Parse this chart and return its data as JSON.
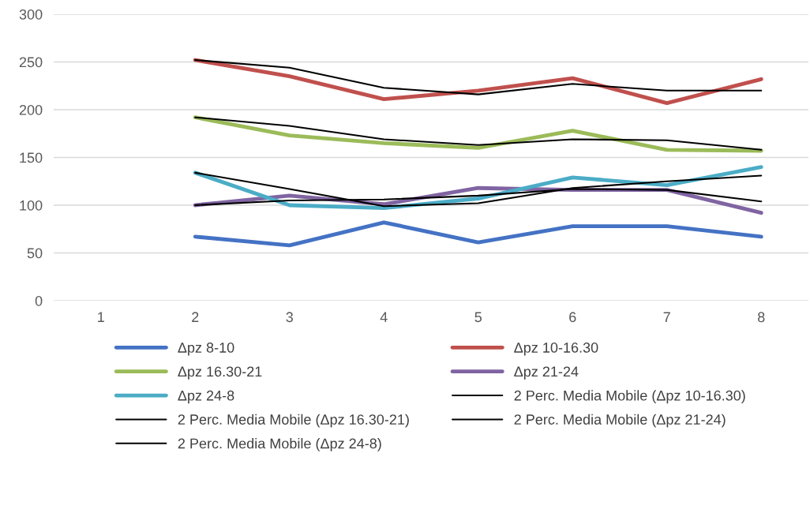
{
  "chart_data": {
    "type": "line",
    "categories": [
      "1",
      "2",
      "3",
      "4",
      "5",
      "6",
      "7",
      "8"
    ],
    "ylim": [
      0,
      300
    ],
    "yticks": [
      0,
      50,
      100,
      150,
      200,
      250,
      300
    ],
    "grid": "y",
    "legend": "bottom",
    "series": [
      {
        "name": "Δpz 8-10",
        "color": "#4472c4",
        "values": [
          null,
          67,
          58,
          82,
          61,
          78,
          78,
          67
        ]
      },
      {
        "name": "Δpz 10-16.30",
        "color": "#c0504d",
        "values": [
          null,
          252,
          235,
          211,
          220,
          233,
          207,
          232
        ]
      },
      {
        "name": "Δpz 16.30-21",
        "color": "#9bbb59",
        "values": [
          null,
          192,
          173,
          165,
          160,
          178,
          158,
          157
        ]
      },
      {
        "name": "Δpz 21-24",
        "color": "#8064a2",
        "values": [
          null,
          100,
          110,
          101,
          118,
          116,
          116,
          92
        ]
      },
      {
        "name": "Δpz 24-8",
        "color": "#4bacc6",
        "values": [
          null,
          134,
          100,
          97,
          107,
          129,
          121,
          140
        ]
      },
      {
        "name": "2 Perc. Media Mobile (Δpz 10-16.30)",
        "color": "#000000",
        "values": [
          null,
          252,
          244,
          223,
          216,
          227,
          220,
          220
        ]
      },
      {
        "name": "2 Perc. Media Mobile (Δpz 16.30-21)",
        "color": "#000000",
        "values": [
          null,
          192,
          183,
          169,
          163,
          169,
          168,
          158
        ]
      },
      {
        "name": "2 Perc. Media Mobile (Δpz 21-24)",
        "color": "#000000",
        "values": [
          null,
          100,
          105,
          106,
          110,
          117,
          116,
          104
        ]
      },
      {
        "name": "2 Perc. Media Mobile (Δpz 24-8)",
        "color": "#000000",
        "values": [
          null,
          134,
          117,
          99,
          102,
          118,
          125,
          131
        ]
      }
    ]
  }
}
